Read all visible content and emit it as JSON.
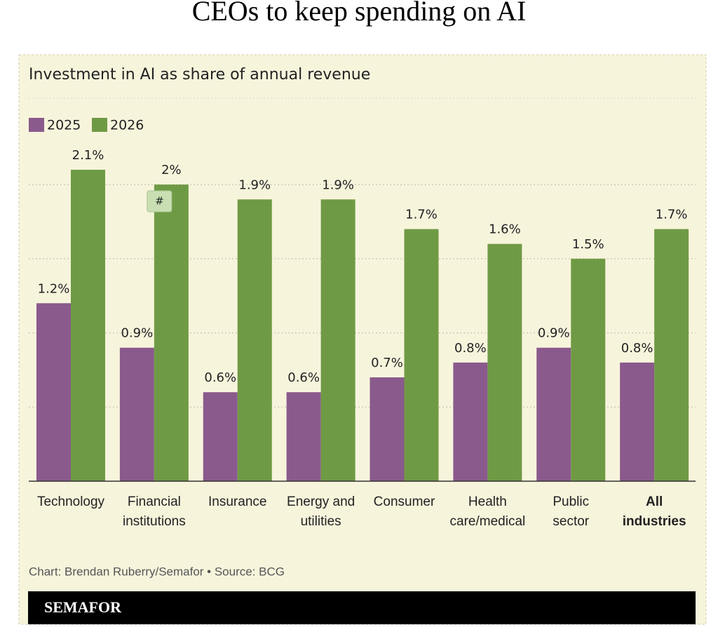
{
  "chart_data": {
    "type": "bar",
    "title": "CEOs to keep spending on AI",
    "subtitle": "Investment in AI as share of annual revenue",
    "categories": [
      "Technology",
      "Financial\ninstitutions",
      "Insurance",
      "Energy and\nutilities",
      "Consumer",
      "Health\ncare/medical",
      "Public\nsector",
      "All\nindustries"
    ],
    "series": [
      {
        "name": "2025",
        "color": "#8a5a8c",
        "values": [
          1.2,
          0.9,
          0.6,
          0.6,
          0.7,
          0.8,
          0.9,
          0.8
        ],
        "value_labels": [
          "1.2%",
          "0.9%",
          "0.6%",
          "0.6%",
          "0.7%",
          "0.8%",
          "0.9%",
          "0.8%"
        ]
      },
      {
        "name": "2026",
        "color": "#6f9a45",
        "values": [
          2.1,
          2,
          1.9,
          1.9,
          1.7,
          1.6,
          1.5,
          1.7
        ],
        "value_labels": [
          "2.1%",
          "2%",
          "1.9%",
          "1.9%",
          "1.7%",
          "1.6%",
          "1.5%",
          "1.7%"
        ]
      }
    ],
    "ylim": [
      0,
      2.1
    ],
    "yticks": [
      0.5,
      1,
      1.5,
      2
    ],
    "grid": true,
    "badge": "#",
    "source": "Chart: Brendan Ruberry/Semafor • Source: BCG",
    "brand": "SEMAFOR"
  }
}
